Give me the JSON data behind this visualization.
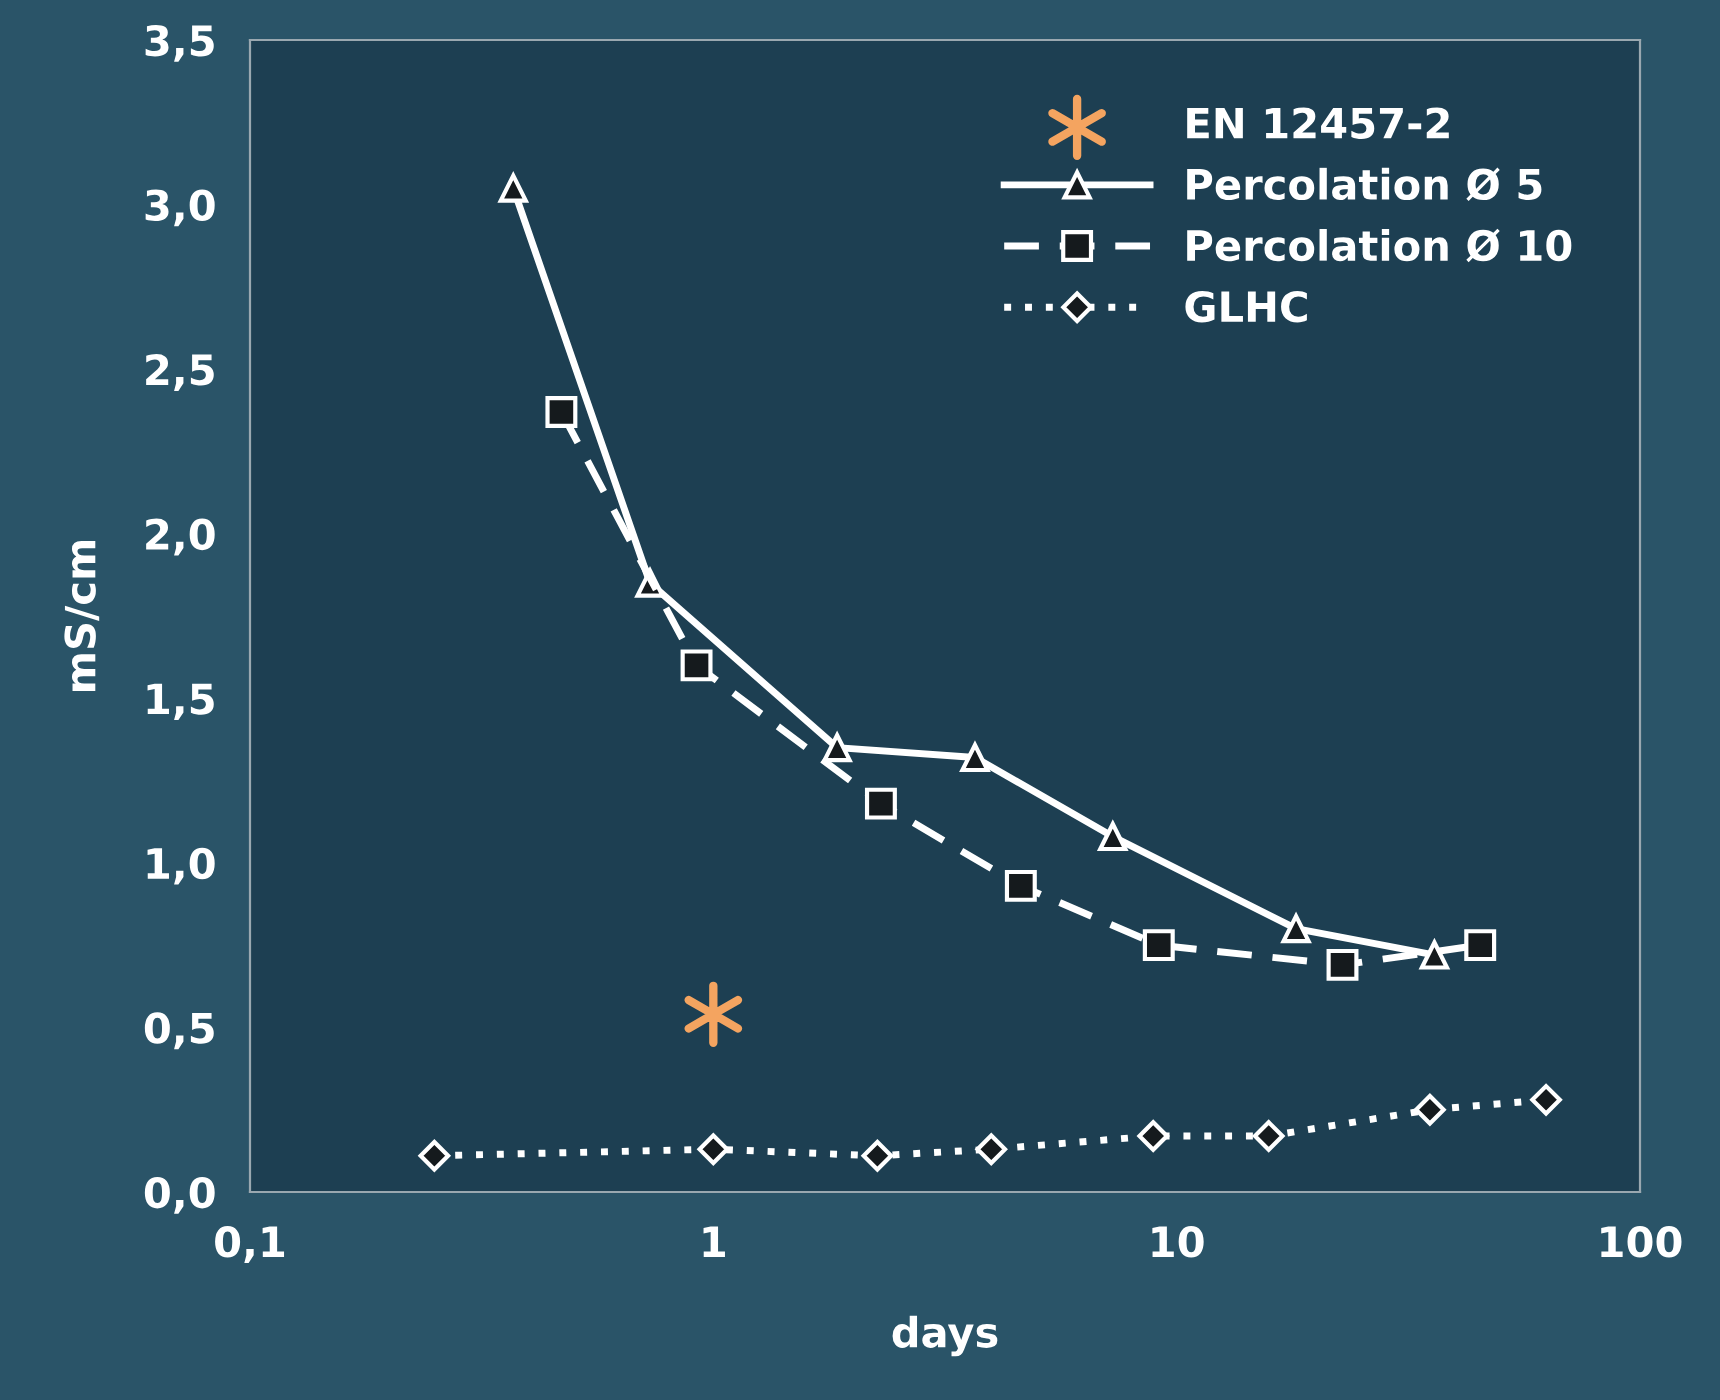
{
  "chart_data": {
    "type": "line",
    "xlabel": "days",
    "ylabel": "mS/cm",
    "log": "x",
    "xlim": [
      0.1,
      100
    ],
    "xticks": [
      {
        "value": 0.1,
        "label": "0,1"
      },
      {
        "value": 1,
        "label": "1"
      },
      {
        "value": 10,
        "label": "10"
      },
      {
        "value": 100,
        "label": "100"
      }
    ],
    "ylim": [
      0,
      3.5
    ],
    "yticks": [
      {
        "value": 0,
        "label": "0,0"
      },
      {
        "value": 0.5,
        "label": "0,5"
      },
      {
        "value": 1,
        "label": "1,0"
      },
      {
        "value": 1.5,
        "label": "1,5"
      },
      {
        "value": 2,
        "label": "2,0"
      },
      {
        "value": 2.5,
        "label": "2,5"
      },
      {
        "value": 3,
        "label": "3,0"
      },
      {
        "value": 3.5,
        "label": "3,5"
      }
    ],
    "grid": false,
    "legend": "top right",
    "series": [
      {
        "name": "EN 12457-2",
        "type": "scatter",
        "marker": "cross",
        "color": "#f4a460",
        "x": [
          1
        ],
        "values": [
          0.54
        ]
      },
      {
        "name": "Percolation Ø 5",
        "marker": "triangle",
        "line_style": "solid",
        "color": "#ffffff",
        "x": [
          0.37,
          0.73,
          1.85,
          3.67,
          7.28,
          18.1,
          36
        ],
        "values": [
          3.05,
          1.85,
          1.35,
          1.32,
          1.08,
          0.8,
          0.72
        ]
      },
      {
        "name": "Percolation Ø 10",
        "marker": "square",
        "line_style": "dashed",
        "color": "#ffffff",
        "x": [
          0.47,
          0.92,
          2.3,
          4.61,
          9.15,
          22.8,
          45.2
        ],
        "values": [
          2.37,
          1.6,
          1.18,
          0.93,
          0.75,
          0.69,
          0.75
        ]
      },
      {
        "name": "GLHC",
        "marker": "diamond",
        "line_style": "dotted",
        "color": "#ffffff",
        "x": [
          0.25,
          1.0,
          2.26,
          3.98,
          8.9,
          15.8,
          35.2,
          62.7
        ],
        "values": [
          0.11,
          0.13,
          0.11,
          0.13,
          0.17,
          0.17,
          0.25,
          0.28
        ]
      }
    ]
  }
}
